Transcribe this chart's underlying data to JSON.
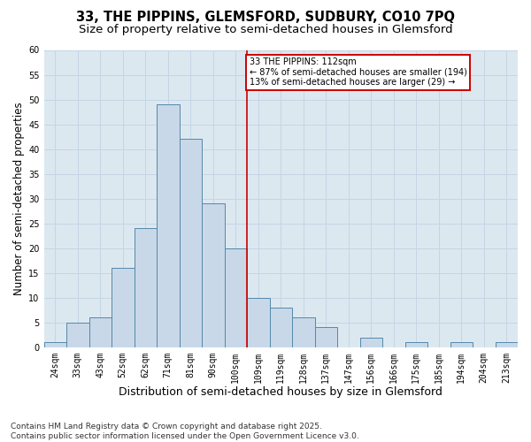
{
  "title_line1": "33, THE PIPPINS, GLEMSFORD, SUDBURY, CO10 7PQ",
  "title_line2": "Size of property relative to semi-detached houses in Glemsford",
  "xlabel": "Distribution of semi-detached houses by size in Glemsford",
  "ylabel": "Number of semi-detached properties",
  "categories": [
    "24sqm",
    "33sqm",
    "43sqm",
    "52sqm",
    "62sqm",
    "71sqm",
    "81sqm",
    "90sqm",
    "100sqm",
    "109sqm",
    "119sqm",
    "128sqm",
    "137sqm",
    "147sqm",
    "156sqm",
    "166sqm",
    "175sqm",
    "185sqm",
    "194sqm",
    "204sqm",
    "213sqm"
  ],
  "values": [
    1,
    5,
    6,
    16,
    24,
    49,
    42,
    29,
    20,
    10,
    8,
    6,
    4,
    0,
    2,
    0,
    1,
    0,
    1,
    0,
    1
  ],
  "bar_color": "#c8d8e8",
  "bar_edge_color": "#5588aa",
  "vline_color": "#cc0000",
  "annotation_title": "33 THE PIPPINS: 112sqm",
  "annotation_line1": "← 87% of semi-detached houses are smaller (194)",
  "annotation_line2": "13% of semi-detached houses are larger (29) →",
  "annotation_box_edgecolor": "#cc0000",
  "ylim": [
    0,
    60
  ],
  "yticks": [
    0,
    5,
    10,
    15,
    20,
    25,
    30,
    35,
    40,
    45,
    50,
    55,
    60
  ],
  "grid_color": "#c5d5e5",
  "background_color": "#dce8f0",
  "footer": "Contains HM Land Registry data © Crown copyright and database right 2025.\nContains public sector information licensed under the Open Government Licence v3.0.",
  "title_fontsize": 10.5,
  "subtitle_fontsize": 9.5,
  "xlabel_fontsize": 9,
  "ylabel_fontsize": 8.5,
  "tick_fontsize": 7,
  "annot_fontsize": 7,
  "footer_fontsize": 6.5
}
